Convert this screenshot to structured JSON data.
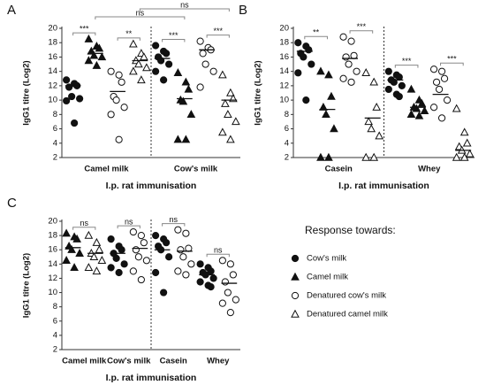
{
  "figure": {
    "legend": {
      "title": "Response towards:",
      "entries": [
        {
          "name": "Cow's milk",
          "shape": "circle",
          "filled": true
        },
        {
          "name": "Camel milk",
          "shape": "triangle",
          "filled": true
        },
        {
          "name": "Denatured cow's milk",
          "shape": "circle",
          "filled": false
        },
        {
          "name": "Denatured camel milk",
          "shape": "triangle",
          "filled": false
        }
      ]
    }
  },
  "chart_data": [
    {
      "type": "dotplot",
      "panel": "A",
      "ylabel": "IgG1 titre (Log2)",
      "xlabel": "I.p. rat immunisation",
      "ylim": [
        2,
        20
      ],
      "yticks": [
        2,
        4,
        6,
        8,
        10,
        12,
        14,
        16,
        18,
        20
      ],
      "divider_after_group": 0,
      "groups": [
        {
          "label": "Camel milk",
          "columns": [
            {
              "marker": 0,
              "values": [
                12.8,
                12.3,
                12,
                11.8,
                10.5,
                10.2,
                9.9,
                6.8
              ],
              "mean": 12
            },
            {
              "marker": 1,
              "values": [
                18.5,
                17.5,
                17.2,
                16.8,
                16.2,
                16,
                15.5,
                14.8
              ],
              "mean": 16.5
            },
            {
              "marker": 2,
              "values": [
                14,
                13.5,
                12.5,
                10.5,
                10,
                9,
                8,
                4.5
              ],
              "mean": 11.2
            },
            {
              "marker": 3,
              "values": [
                17.8,
                16.5,
                16,
                15.5,
                15,
                14.5,
                14,
                12.8
              ],
              "mean": 15.5
            }
          ]
        },
        {
          "label": "Cow's milk",
          "columns": [
            {
              "marker": 0,
              "values": [
                17.6,
                16.8,
                16.5,
                16,
                15.5,
                15,
                14,
                12.8
              ],
              "mean": 15.8
            },
            {
              "marker": 1,
              "values": [
                13.8,
                12.5,
                11.5,
                10,
                9.8,
                8,
                4.5,
                4.5
              ],
              "mean": 10.2
            },
            {
              "marker": 2,
              "values": [
                18.2,
                17.3,
                17,
                16.5,
                15,
                14,
                11.8
              ],
              "mean": 17
            },
            {
              "marker": 3,
              "values": [
                13.5,
                11,
                10.2,
                9.5,
                8,
                7,
                5.5,
                4.5
              ],
              "mean": 10
            }
          ]
        }
      ],
      "comparisons": [
        {
          "label": "***",
          "columns": [
            0,
            1
          ],
          "tier": 0
        },
        {
          "label": "**",
          "columns": [
            2,
            3
          ],
          "tier": 0
        },
        {
          "label": "***",
          "columns": [
            4,
            5
          ],
          "tier": 0
        },
        {
          "label": "***",
          "columns": [
            6,
            7
          ],
          "tier": 0
        },
        {
          "label": "ns",
          "columns": [
            1,
            5
          ],
          "tier": 1
        },
        {
          "label": "ns",
          "columns": [
            3,
            7
          ],
          "tier": 2
        }
      ]
    },
    {
      "type": "dotplot",
      "panel": "B",
      "ylabel": "IgG1 titre (Log2)",
      "xlabel": "I.p. rat immunisation",
      "ylim": [
        2,
        20
      ],
      "yticks": [
        2,
        4,
        6,
        8,
        10,
        12,
        14,
        16,
        18,
        20
      ],
      "divider_after_group": 0,
      "groups": [
        {
          "label": "Casein",
          "columns": [
            {
              "marker": 0,
              "values": [
                18,
                17.5,
                17,
                16.5,
                16,
                15,
                13.8,
                10
              ],
              "mean": 16.8
            },
            {
              "marker": 1,
              "values": [
                14,
                13.5,
                10.5,
                9,
                8,
                6,
                2,
                2
              ],
              "mean": 8.7
            },
            {
              "marker": 2,
              "values": [
                18.8,
                18.2,
                16.2,
                16,
                15,
                14,
                13,
                12.5
              ],
              "mean": 15.8
            },
            {
              "marker": 3,
              "values": [
                13.8,
                12.5,
                9,
                7,
                6,
                5,
                2,
                2
              ],
              "mean": 7.5
            }
          ]
        },
        {
          "label": "Whey",
          "columns": [
            {
              "marker": 0,
              "values": [
                14,
                13.5,
                13.2,
                12.8,
                12.5,
                12,
                11.5,
                10.8,
                10.5
              ],
              "mean": 12.8
            },
            {
              "marker": 1,
              "values": [
                11.5,
                10,
                9.5,
                9,
                8.8,
                8.5,
                8,
                7.8
              ],
              "mean": 9
            },
            {
              "marker": 2,
              "values": [
                14.3,
                14,
                13,
                12.5,
                11.5,
                10,
                9,
                7.5
              ],
              "mean": 10.8
            },
            {
              "marker": 3,
              "values": [
                8.8,
                5.5,
                4,
                3.5,
                3,
                2.5,
                2,
                2
              ],
              "mean": 3
            }
          ]
        }
      ],
      "comparisons": [
        {
          "label": "**",
          "columns": [
            0,
            1
          ],
          "tier": 0
        },
        {
          "label": "***",
          "columns": [
            2,
            3
          ],
          "tier": 0
        },
        {
          "label": "***",
          "columns": [
            4,
            5
          ],
          "tier": 0
        },
        {
          "label": "***",
          "columns": [
            6,
            7
          ],
          "tier": 0
        }
      ]
    },
    {
      "type": "dotplot",
      "panel": "C",
      "ylabel": "IgG1 titre (Log2)",
      "xlabel": "I.p. rat immunisation",
      "ylim": [
        2,
        20
      ],
      "yticks": [
        2,
        4,
        6,
        8,
        10,
        12,
        14,
        16,
        18,
        20
      ],
      "divider_after_group": 1,
      "groups": [
        {
          "label": "Camel milk",
          "columns": [
            {
              "marker": 1,
              "values": [
                18.3,
                17.8,
                17.5,
                16.5,
                16,
                15.5,
                14.5,
                13.5
              ],
              "mean": 16.3
            },
            {
              "marker": 3,
              "values": [
                18,
                17,
                16,
                15.5,
                15,
                14.5,
                13.5,
                13
              ],
              "mean": 15.5
            }
          ]
        },
        {
          "label": "Cow's milk",
          "columns": [
            {
              "marker": 0,
              "values": [
                17.5,
                16.5,
                16,
                15.5,
                14.8,
                14,
                13.5,
                12.8
              ],
              "mean": 15.5
            },
            {
              "marker": 2,
              "values": [
                18.5,
                18,
                17,
                16,
                15,
                14.5,
                13,
                11.8
              ],
              "mean": 16.2
            }
          ]
        },
        {
          "label": "Casein",
          "columns": [
            {
              "marker": 0,
              "values": [
                18,
                17.5,
                17,
                16.5,
                16,
                15,
                12.8,
                10
              ],
              "mean": 16
            },
            {
              "marker": 2,
              "values": [
                18.8,
                18.3,
                16.2,
                16,
                15,
                14,
                13,
                12.5
              ],
              "mean": 15.8
            }
          ]
        },
        {
          "label": "Whey",
          "columns": [
            {
              "marker": 0,
              "values": [
                14,
                13.5,
                13,
                12.8,
                12.5,
                12,
                11.5,
                11,
                10.8
              ],
              "mean": 12.5
            },
            {
              "marker": 2,
              "values": [
                14.5,
                14,
                12.5,
                11.5,
                10,
                9,
                8.5,
                7.2
              ],
              "mean": 11.3
            }
          ]
        }
      ],
      "comparisons": [
        {
          "label": "ns",
          "columns": [
            0,
            1
          ],
          "tier": 0
        },
        {
          "label": "ns",
          "columns": [
            2,
            3
          ],
          "tier": 0
        },
        {
          "label": "ns",
          "columns": [
            4,
            5
          ],
          "tier": 0
        },
        {
          "label": "ns",
          "columns": [
            6,
            7
          ],
          "tier": 0
        }
      ]
    }
  ]
}
